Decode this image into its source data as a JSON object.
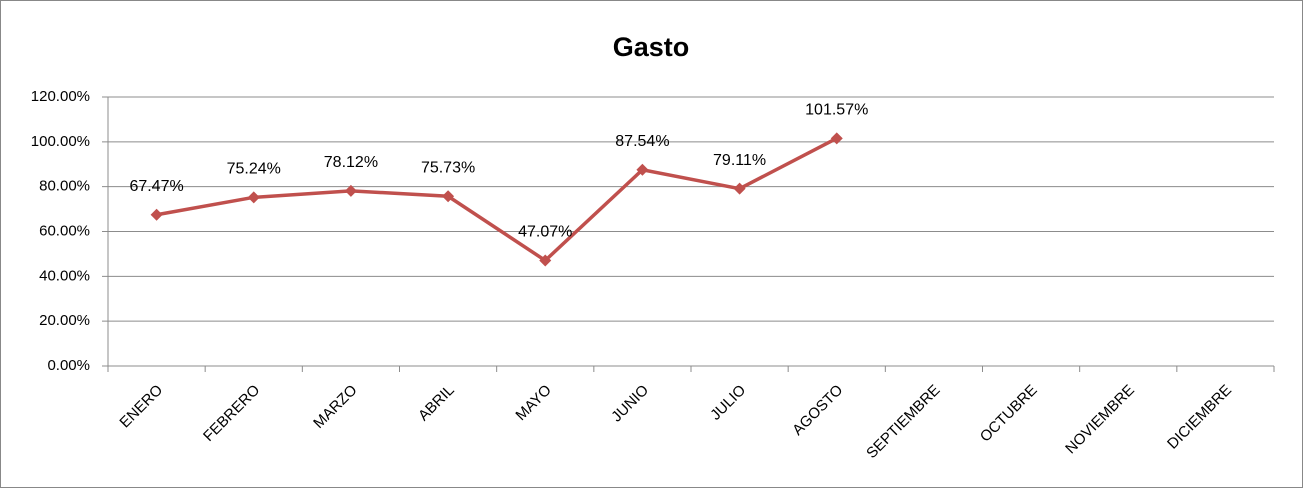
{
  "chart_data": {
    "type": "line",
    "title": "Gasto",
    "categories": [
      "ENERO",
      "FEBRERO",
      "MARZO",
      "ABRIL",
      "MAYO",
      "JUNIO",
      "JULIO",
      "AGOSTO",
      "SEPTIEMBRE",
      "OCTUBRE",
      "NOVIEMBRE",
      "DICIEMBRE"
    ],
    "series": [
      {
        "name": "Gasto",
        "color": "#c0504d",
        "values": [
          67.47,
          75.24,
          78.12,
          75.73,
          47.07,
          87.54,
          79.11,
          101.57,
          null,
          null,
          null,
          null
        ],
        "value_labels": [
          "67.47%",
          "75.24%",
          "78.12%",
          "75.73%",
          "47.07%",
          "87.54%",
          "79.11%",
          "101.57%",
          null,
          null,
          null,
          null
        ]
      }
    ],
    "ylim": [
      0,
      120
    ],
    "yticks": [
      {
        "value": 0,
        "label": "0.00%"
      },
      {
        "value": 20,
        "label": "20.00%"
      },
      {
        "value": 40,
        "label": "40.00%"
      },
      {
        "value": 60,
        "label": "60.00%"
      },
      {
        "value": 80,
        "label": "80.00%"
      },
      {
        "value": 100,
        "label": "100.00%"
      },
      {
        "value": 120,
        "label": "120.00%"
      }
    ],
    "grid": true
  }
}
